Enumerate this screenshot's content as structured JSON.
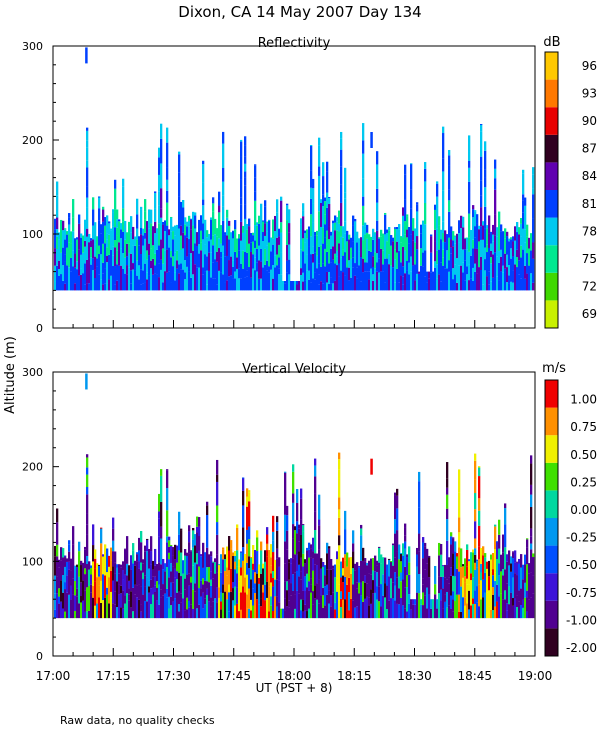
{
  "title": "Dixon, CA 14 May 2007  Day 134",
  "shared_ylabel": "Altitude (m)",
  "xlabel": "UT  (PST + 8)",
  "x_ticks": [
    "17:00",
    "17:15",
    "17:30",
    "17:45",
    "18:00",
    "18:15",
    "18:30",
    "18:45",
    "19:00"
  ],
  "footnote": "Raw data, no quality checks",
  "chart_data": [
    {
      "type": "heatmap",
      "title": "Reflectivity",
      "colorbar_label": "dB",
      "xlim": [
        "17:00",
        "19:00"
      ],
      "ylim": [
        0,
        300
      ],
      "y_ticks": [
        0,
        100,
        200,
        300
      ],
      "color_levels": [
        {
          "label": "69",
          "color": "#c8f000"
        },
        {
          "label": "72",
          "color": "#40d800"
        },
        {
          "label": "75",
          "color": "#00e890"
        },
        {
          "label": "78",
          "color": "#00c8f0"
        },
        {
          "label": "81",
          "color": "#0040ff"
        },
        {
          "label": "84",
          "color": "#6000b0"
        },
        {
          "label": "87",
          "color": "#300020"
        },
        {
          "label": "90",
          "color": "#e80000"
        },
        {
          "label": "93",
          "color": "#ff7800"
        },
        {
          "label": "96",
          "color": "#ffc800"
        }
      ],
      "echo_base_m": 40,
      "typical_top_m": 120,
      "max_top_m": 220,
      "isolated_echoes": [
        {
          "time": "17:08",
          "alt_m": 290
        },
        {
          "time": "18:19",
          "alt_m": 200
        }
      ]
    },
    {
      "type": "heatmap",
      "title": "Vertical Velocity",
      "colorbar_label": "m/s",
      "xlim": [
        "17:00",
        "19:00"
      ],
      "ylim": [
        0,
        300
      ],
      "y_ticks": [
        0,
        100,
        200,
        300
      ],
      "color_levels": [
        {
          "label": "-2.00",
          "color": "#300020"
        },
        {
          "label": "-1.00",
          "color": "#500090"
        },
        {
          "label": "-0.75",
          "color": "#3c14d8"
        },
        {
          "label": "-0.50",
          "color": "#0050ff"
        },
        {
          "label": "-0.25",
          "color": "#0098f0"
        },
        {
          "label": "0.00",
          "color": "#00d8a0"
        },
        {
          "label": "0.25",
          "color": "#40e000"
        },
        {
          "label": "0.50",
          "color": "#f0f000"
        },
        {
          "label": "0.75",
          "color": "#ff9000"
        },
        {
          "label": "1.00",
          "color": "#f00000"
        }
      ],
      "echo_base_m": 40,
      "typical_top_m": 120,
      "max_top_m": 220,
      "isolated_echoes": [
        {
          "time": "17:08",
          "alt_m": 290
        },
        {
          "time": "18:19",
          "alt_m": 200
        }
      ]
    }
  ]
}
